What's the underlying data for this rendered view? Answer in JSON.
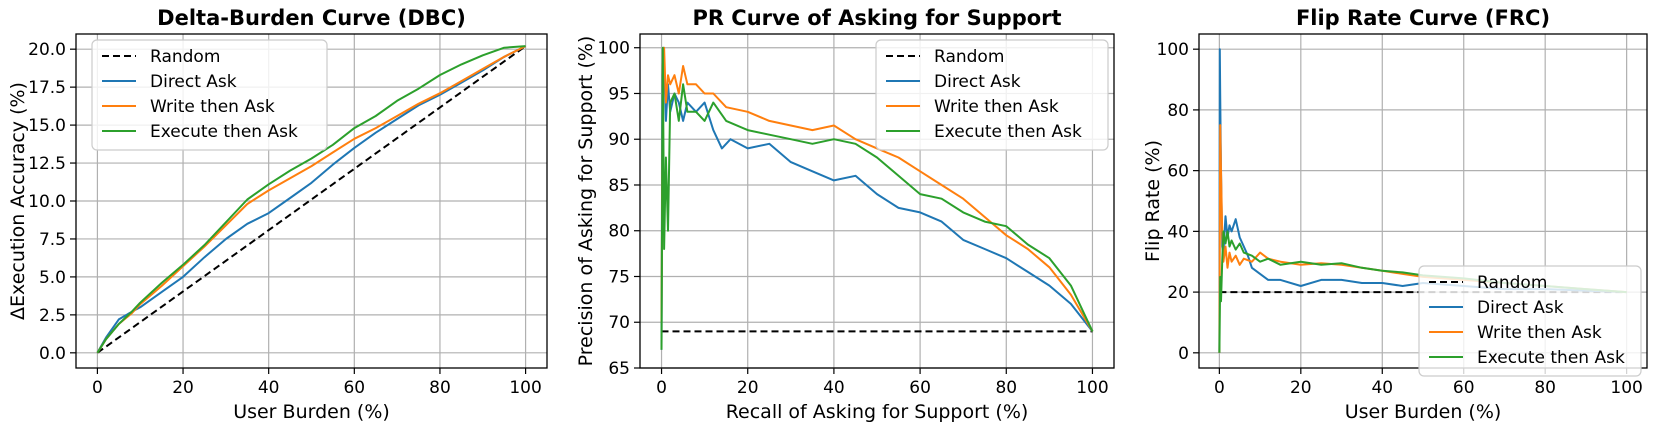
{
  "colors": {
    "random": "#000000",
    "direct": "#1f77b4",
    "write": "#ff7f0e",
    "execute": "#2ca02c",
    "grid": "#b0b0b0"
  },
  "chart_data": [
    {
      "type": "line",
      "title": "Delta-Burden Curve (DBC)",
      "xlabel": "User Burden (%)",
      "ylabel": "ΔExecution Accuracy (%)",
      "xlim": [
        -5,
        105
      ],
      "ylim": [
        -1,
        21
      ],
      "xticks": [
        0,
        20,
        40,
        60,
        80,
        100
      ],
      "yticks": [
        0.0,
        2.5,
        5.0,
        7.5,
        10.0,
        12.5,
        15.0,
        17.5,
        20.0
      ],
      "ytick_labels": [
        "0.0",
        "2.5",
        "5.0",
        "7.5",
        "10.0",
        "12.5",
        "15.0",
        "17.5",
        "20.0"
      ],
      "grid": true,
      "legend_position": "upper left",
      "series": [
        {
          "name": "Random",
          "style": "dashed",
          "color_key": "random",
          "x": [
            0,
            100
          ],
          "y": [
            0,
            20.2
          ]
        },
        {
          "name": "Direct Ask",
          "color_key": "direct",
          "x": [
            0,
            2,
            5,
            8,
            10,
            15,
            20,
            25,
            30,
            35,
            40,
            45,
            50,
            55,
            60,
            65,
            70,
            75,
            80,
            85,
            90,
            95,
            100
          ],
          "y": [
            0,
            1.0,
            2.2,
            2.7,
            3.0,
            4.0,
            5.0,
            6.3,
            7.5,
            8.5,
            9.2,
            10.2,
            11.2,
            12.4,
            13.5,
            14.5,
            15.4,
            16.3,
            17.0,
            17.8,
            18.6,
            19.5,
            20.2
          ]
        },
        {
          "name": "Write then Ask",
          "color_key": "write",
          "x": [
            0,
            2,
            5,
            8,
            10,
            15,
            20,
            25,
            30,
            35,
            40,
            45,
            50,
            55,
            60,
            65,
            70,
            75,
            80,
            85,
            90,
            95,
            100
          ],
          "y": [
            0,
            0.9,
            1.9,
            2.6,
            3.2,
            4.4,
            5.7,
            7.0,
            8.4,
            9.8,
            10.7,
            11.5,
            12.3,
            13.2,
            14.1,
            14.8,
            15.6,
            16.4,
            17.1,
            17.9,
            18.7,
            19.5,
            20.2
          ]
        },
        {
          "name": "Execute then Ask",
          "color_key": "execute",
          "x": [
            0,
            2,
            5,
            8,
            10,
            15,
            20,
            25,
            30,
            35,
            40,
            45,
            50,
            55,
            60,
            65,
            70,
            75,
            80,
            85,
            90,
            95,
            100
          ],
          "y": [
            0,
            0.9,
            1.9,
            2.7,
            3.3,
            4.6,
            5.8,
            7.1,
            8.6,
            10.1,
            11.1,
            12.0,
            12.8,
            13.7,
            14.8,
            15.6,
            16.6,
            17.4,
            18.3,
            19.0,
            19.6,
            20.1,
            20.2
          ]
        }
      ]
    },
    {
      "type": "line",
      "title": "PR Curve of Asking for Support",
      "xlabel": "Recall of Asking for Support (%)",
      "ylabel": "Precision of Asking for Support (%)",
      "xlim": [
        -5,
        105
      ],
      "ylim": [
        65,
        101.5
      ],
      "xticks": [
        0,
        20,
        40,
        60,
        80,
        100
      ],
      "yticks": [
        65,
        70,
        75,
        80,
        85,
        90,
        95,
        100
      ],
      "ytick_labels": [
        "65",
        "70",
        "75",
        "80",
        "85",
        "90",
        "95",
        "100"
      ],
      "grid": true,
      "legend_position": "upper right",
      "series": [
        {
          "name": "Random",
          "style": "dashed",
          "color_key": "random",
          "x": [
            0,
            100
          ],
          "y": [
            69,
            69
          ]
        },
        {
          "name": "Direct Ask",
          "color_key": "direct",
          "x": [
            0,
            0.2,
            0.5,
            1,
            1.5,
            2,
            3,
            4,
            5,
            6,
            8,
            10,
            12,
            14,
            16,
            20,
            25,
            30,
            35,
            40,
            45,
            50,
            55,
            60,
            65,
            70,
            75,
            80,
            85,
            90,
            95,
            100
          ],
          "y": [
            67,
            97,
            100,
            92,
            96,
            93,
            95,
            94,
            92,
            94,
            93,
            94,
            91,
            89,
            90,
            89,
            89.5,
            87.5,
            86.5,
            85.5,
            86,
            84,
            82.5,
            82,
            81,
            79,
            78,
            77,
            75.5,
            74,
            72,
            69
          ]
        },
        {
          "name": "Write then Ask",
          "color_key": "write",
          "x": [
            0,
            0.3,
            0.6,
            1,
            1.5,
            2,
            3,
            4,
            5,
            6,
            8,
            10,
            12,
            15,
            20,
            25,
            30,
            35,
            40,
            45,
            50,
            55,
            60,
            65,
            70,
            75,
            80,
            85,
            90,
            95,
            100
          ],
          "y": [
            70,
            98,
            100,
            94,
            97,
            96,
            97,
            95,
            98,
            96,
            96,
            95,
            95,
            93.5,
            93,
            92,
            91.5,
            91,
            91.5,
            90,
            89,
            88,
            86.5,
            85,
            83.5,
            81.5,
            79.5,
            78,
            76,
            73,
            69
          ]
        },
        {
          "name": "Execute then Ask",
          "color_key": "execute",
          "x": [
            0,
            0.3,
            0.6,
            1,
            1.5,
            2,
            3,
            4,
            5,
            6,
            8,
            10,
            12,
            15,
            20,
            25,
            30,
            35,
            40,
            45,
            50,
            55,
            60,
            65,
            70,
            75,
            80,
            85,
            90,
            95,
            100
          ],
          "y": [
            67,
            100,
            78,
            88,
            80,
            94,
            95,
            92,
            96,
            93,
            93,
            92,
            94,
            92,
            91,
            90.5,
            90,
            89.5,
            90,
            89.5,
            88,
            86,
            84,
            83.5,
            82,
            81,
            80.5,
            78.5,
            77,
            74,
            69
          ]
        }
      ]
    },
    {
      "type": "line",
      "title": "Flip Rate Curve (FRC)",
      "xlabel": "User Burden (%)",
      "ylabel": "Flip Rate (%)",
      "xlim": [
        -5,
        105
      ],
      "ylim": [
        -5,
        105
      ],
      "xticks": [
        0,
        20,
        40,
        60,
        80,
        100
      ],
      "yticks": [
        0,
        20,
        40,
        60,
        80,
        100
      ],
      "ytick_labels": [
        "0",
        "20",
        "40",
        "60",
        "80",
        "100"
      ],
      "grid": true,
      "legend_position": "lower right",
      "series": [
        {
          "name": "Random",
          "style": "dashed",
          "color_key": "random",
          "x": [
            0,
            100
          ],
          "y": [
            20,
            20
          ]
        },
        {
          "name": "Direct Ask",
          "color_key": "direct",
          "x": [
            0,
            0.1,
            0.2,
            0.4,
            0.7,
            1,
            1.5,
            2,
            2.5,
            3,
            4,
            5,
            6,
            7,
            8,
            10,
            12,
            15,
            20,
            25,
            30,
            35,
            40,
            45,
            50,
            60,
            70,
            80,
            90,
            100
          ],
          "y": [
            0,
            100,
            85,
            60,
            35,
            33,
            45,
            38,
            42,
            40,
            44,
            38,
            35,
            32,
            28,
            26,
            24,
            24,
            22,
            24,
            24,
            23,
            23,
            22,
            23,
            22,
            21,
            21,
            20.5,
            20
          ]
        },
        {
          "name": "Write then Ask",
          "color_key": "write",
          "x": [
            0,
            0.2,
            0.4,
            0.7,
            1,
            1.5,
            2,
            2.5,
            3,
            4,
            5,
            6,
            8,
            10,
            12,
            15,
            20,
            25,
            30,
            35,
            40,
            45,
            50,
            60,
            70,
            80,
            90,
            100
          ],
          "y": [
            0,
            75,
            60,
            40,
            30,
            35,
            28,
            33,
            30,
            32,
            29,
            31,
            30,
            33,
            31,
            30,
            29,
            29.5,
            29,
            28,
            27,
            26,
            25,
            24,
            23,
            22,
            21,
            20
          ]
        },
        {
          "name": "Execute then Ask",
          "color_key": "execute",
          "x": [
            0,
            0.2,
            0.4,
            0.7,
            1,
            1.5,
            2,
            2.5,
            3,
            4,
            5,
            6,
            8,
            10,
            12,
            15,
            20,
            25,
            30,
            35,
            40,
            45,
            50,
            60,
            70,
            80,
            90,
            100
          ],
          "y": [
            0,
            25,
            17,
            30,
            40,
            36,
            40,
            35,
            37,
            34,
            36,
            33,
            32,
            30,
            31,
            29,
            30,
            29,
            29.5,
            28,
            27,
            26.5,
            25.5,
            24.5,
            23,
            22,
            21,
            20
          ]
        }
      ]
    }
  ]
}
